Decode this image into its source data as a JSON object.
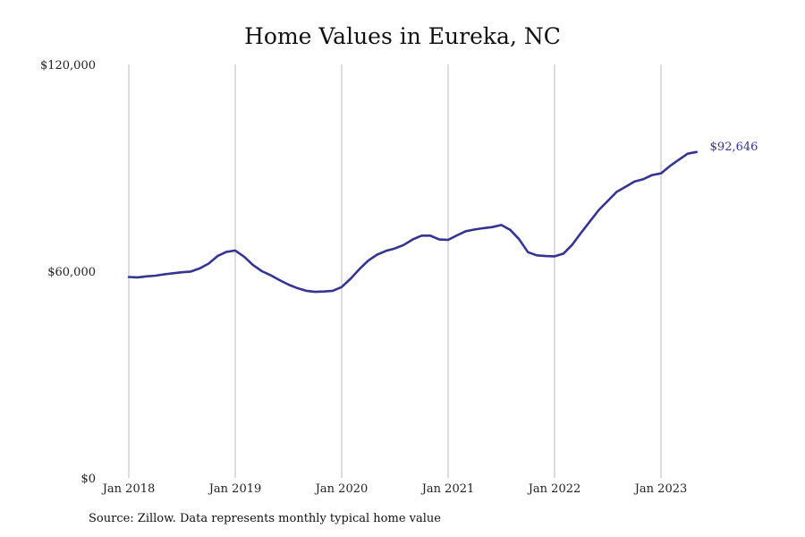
{
  "chart_data": {
    "type": "line",
    "title": "Home Values in Eureka, NC",
    "xlabel": "",
    "ylabel": "",
    "ylim": [
      0,
      120000
    ],
    "yticks": [
      {
        "value": 0,
        "label": "$0"
      },
      {
        "value": 60000,
        "label": "$60,000"
      },
      {
        "value": 120000,
        "label": "$120,000"
      }
    ],
    "xticks": [
      {
        "value": "2018-01",
        "label": "Jan 2018"
      },
      {
        "value": "2019-01",
        "label": "Jan 2019"
      },
      {
        "value": "2020-01",
        "label": "Jan 2020"
      },
      {
        "value": "2021-01",
        "label": "Jan 2021"
      },
      {
        "value": "2022-01",
        "label": "Jan 2022"
      },
      {
        "value": "2023-01",
        "label": "Jan 2023"
      }
    ],
    "xlim": [
      "2018-01",
      "2023-12"
    ],
    "grid": {
      "vertical": true,
      "horizontal": false
    },
    "legend": "none",
    "line_color": "#35348f",
    "end_label": "$92,646",
    "series": [
      {
        "x": [
          "2018-01",
          "2018-02",
          "2018-03",
          "2018-04",
          "2018-05",
          "2018-06",
          "2018-07",
          "2018-08",
          "2018-09",
          "2018-10",
          "2018-11",
          "2018-12",
          "2019-01",
          "2019-02",
          "2019-03",
          "2019-04",
          "2019-05",
          "2019-06",
          "2019-07",
          "2019-08",
          "2019-09",
          "2019-10",
          "2019-11",
          "2019-12",
          "2020-01",
          "2020-02",
          "2020-03",
          "2020-04",
          "2020-05",
          "2020-06",
          "2020-07",
          "2020-08",
          "2020-09",
          "2020-10",
          "2020-11",
          "2020-12",
          "2021-01",
          "2021-02",
          "2021-03",
          "2021-04",
          "2021-05",
          "2021-06",
          "2021-07",
          "2021-08",
          "2021-09",
          "2021-10",
          "2021-11",
          "2021-12",
          "2022-01",
          "2022-02",
          "2022-03",
          "2022-04",
          "2022-05",
          "2022-06",
          "2022-07",
          "2022-08",
          "2022-09",
          "2022-10",
          "2022-11",
          "2022-12",
          "2023-01",
          "2023-02",
          "2023-03",
          "2023-04",
          "2023-05"
        ],
        "values": [
          58300,
          58200,
          58500,
          58700,
          59100,
          59400,
          59700,
          59900,
          60800,
          62200,
          64400,
          65600,
          66000,
          64200,
          61800,
          60000,
          58800,
          57400,
          56100,
          55100,
          54300,
          54000,
          54100,
          54300,
          55400,
          57800,
          60600,
          63100,
          64800,
          65900,
          66600,
          67600,
          69200,
          70300,
          70300,
          69200,
          69100,
          70400,
          71600,
          72100,
          72500,
          72800,
          73400,
          72000,
          69300,
          65500,
          64600,
          64400,
          64300,
          65100,
          67700,
          71200,
          74500,
          77800,
          80400,
          83000,
          84500,
          86000,
          86700,
          87900,
          88400,
          90500,
          92300,
          94100,
          94600
        ]
      }
    ]
  },
  "source_note": "Source: Zillow. Data represents monthly typical home value"
}
